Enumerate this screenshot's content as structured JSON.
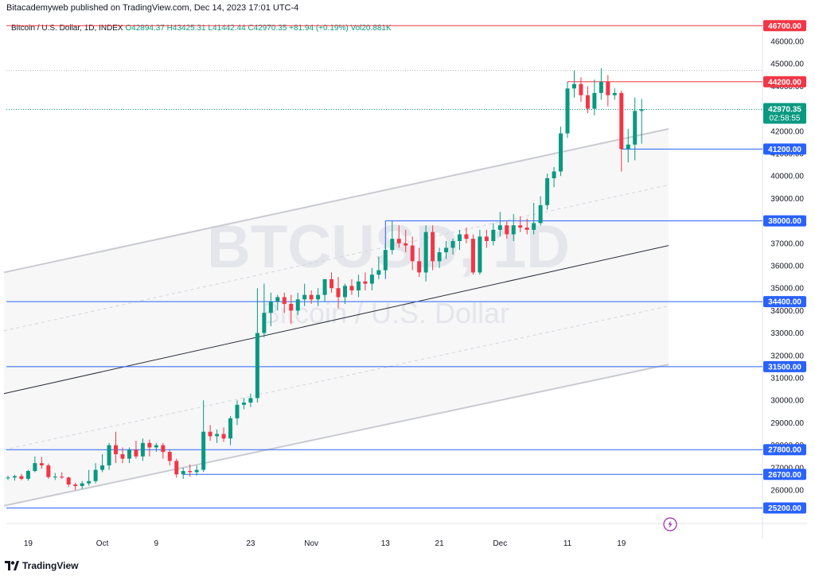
{
  "header": {
    "publisher_line": "Bitacademyweb published on TradingView.com, Dec 14, 2023 17:01 UTC-4"
  },
  "legend": {
    "symbol": "Bitcoin / U.S. Dollar, 1D, INDEX",
    "o": "O42894.37",
    "h": "H43425.31",
    "l": "L41442.44",
    "c": "C42970.35",
    "change": "+81.94 (+0.19%)",
    "vol": "Vol20.881K"
  },
  "watermark": {
    "ticker": "BTCUSD, 1D",
    "name": "Bitcoin / U.S. Dollar"
  },
  "footer": {
    "brand": "TradingView"
  },
  "colors": {
    "up": "#089981",
    "down": "#f23645",
    "blue_level": "#2962ff",
    "red_level": "#f23645",
    "last_price": "#089981"
  },
  "price_badge": {
    "price": "42970.35",
    "countdown": "02:58:55"
  },
  "chart_data": {
    "type": "candlestick",
    "title": "Bitcoin / U.S. Dollar, 1D, INDEX",
    "ylim": [
      25000,
      47000
    ],
    "y_ticks": [
      26000,
      27000,
      28000,
      29000,
      30000,
      31000,
      32000,
      33000,
      34000,
      35000,
      36000,
      37000,
      38000,
      39000,
      40000,
      41000,
      42000,
      43000,
      44000,
      45000,
      46000
    ],
    "x_ticks": [
      {
        "index": 3,
        "label": "19"
      },
      {
        "index": 14,
        "label": "Oct"
      },
      {
        "index": 22,
        "label": "9"
      },
      {
        "index": 36,
        "label": "23"
      },
      {
        "index": 45,
        "label": "Nov"
      },
      {
        "index": 56,
        "label": "13"
      },
      {
        "index": 64,
        "label": "21"
      },
      {
        "index": 73,
        "label": "Dec"
      },
      {
        "index": 83,
        "label": "11"
      },
      {
        "index": 91,
        "label": "19"
      }
    ],
    "x_range": [
      -0.6,
      98
    ],
    "ohlc": [
      [
        26550,
        26640,
        26450,
        26560
      ],
      [
        26560,
        26680,
        26420,
        26620
      ],
      [
        26620,
        26720,
        26440,
        26500
      ],
      [
        26500,
        26900,
        26420,
        26850
      ],
      [
        26850,
        27500,
        26800,
        27200
      ],
      [
        27200,
        27480,
        26950,
        27100
      ],
      [
        27100,
        27180,
        26500,
        26580
      ],
      [
        26580,
        26760,
        26450,
        26600
      ],
      [
        26600,
        26800,
        26500,
        26560
      ],
      [
        26560,
        26600,
        26150,
        26250
      ],
      [
        26250,
        26330,
        26000,
        26180
      ],
      [
        26180,
        26400,
        26050,
        26300
      ],
      [
        26300,
        26900,
        26200,
        26400
      ],
      [
        26400,
        27200,
        26300,
        26900
      ],
      [
        26900,
        27600,
        26800,
        27100
      ],
      [
        27100,
        28100,
        26900,
        28000
      ],
      [
        28000,
        28600,
        27200,
        27600
      ],
      [
        27600,
        27900,
        27200,
        27400
      ],
      [
        27400,
        27900,
        27200,
        27800
      ],
      [
        27800,
        28200,
        27400,
        27500
      ],
      [
        27500,
        28300,
        27300,
        28100
      ],
      [
        28100,
        28250,
        27500,
        27900
      ],
      [
        27900,
        28100,
        27700,
        28000
      ],
      [
        28000,
        28100,
        27400,
        27700
      ],
      [
        27700,
        27800,
        27100,
        27300
      ],
      [
        27300,
        27400,
        26550,
        26700
      ],
      [
        26700,
        27000,
        26500,
        26850
      ],
      [
        26850,
        27150,
        26600,
        26800
      ],
      [
        26800,
        27100,
        26650,
        26900
      ],
      [
        26900,
        30000,
        26800,
        28600
      ],
      [
        28600,
        28900,
        28200,
        28400
      ],
      [
        28400,
        28700,
        28100,
        28500
      ],
      [
        28500,
        28800,
        28150,
        28300
      ],
      [
        28300,
        29300,
        28000,
        29200
      ],
      [
        29200,
        30000,
        28900,
        29800
      ],
      [
        29800,
        30100,
        29600,
        29900
      ],
      [
        29900,
        30300,
        29700,
        30100
      ],
      [
        30100,
        35000,
        29900,
        33000
      ],
      [
        33000,
        35200,
        32800,
        33900
      ],
      [
        33900,
        34800,
        33300,
        34400
      ],
      [
        34400,
        34700,
        34000,
        34600
      ],
      [
        34600,
        34800,
        33900,
        34300
      ],
      [
        34300,
        34700,
        33400,
        34000
      ],
      [
        34000,
        34800,
        33800,
        34500
      ],
      [
        34500,
        35200,
        34200,
        34700
      ],
      [
        34700,
        34900,
        34300,
        34500
      ],
      [
        34500,
        35000,
        34200,
        34700
      ],
      [
        34700,
        35300,
        34400,
        35400
      ],
      [
        35400,
        35700,
        34800,
        35000
      ],
      [
        35000,
        35500,
        34100,
        34600
      ],
      [
        34600,
        35200,
        34300,
        35100
      ],
      [
        35100,
        35400,
        34700,
        34900
      ],
      [
        34900,
        35600,
        34600,
        35300
      ],
      [
        35300,
        35700,
        34900,
        35200
      ],
      [
        35200,
        35900,
        34900,
        35600
      ],
      [
        35600,
        36400,
        35400,
        35800
      ],
      [
        35800,
        37000,
        35600,
        36700
      ],
      [
        36700,
        38000,
        36500,
        37200
      ],
      [
        37200,
        37800,
        36800,
        37000
      ],
      [
        37000,
        37600,
        36600,
        36900
      ],
      [
        36900,
        37300,
        35800,
        36200
      ],
      [
        36200,
        36800,
        35500,
        35700
      ],
      [
        35700,
        37800,
        35300,
        37500
      ],
      [
        37500,
        37800,
        35800,
        36200
      ],
      [
        36200,
        36800,
        35900,
        36600
      ],
      [
        36600,
        37100,
        36300,
        36800
      ],
      [
        36800,
        37200,
        36500,
        37100
      ],
      [
        37100,
        37600,
        36700,
        37400
      ],
      [
        37400,
        37700,
        37000,
        37200
      ],
      [
        37200,
        37400,
        35600,
        35700
      ],
      [
        35700,
        37600,
        35600,
        37300
      ],
      [
        37300,
        37600,
        36800,
        37100
      ],
      [
        37100,
        37900,
        36900,
        37600
      ],
      [
        37600,
        38400,
        37300,
        37800
      ],
      [
        37800,
        38000,
        37200,
        37400
      ],
      [
        37400,
        38300,
        37100,
        37800
      ],
      [
        37800,
        38200,
        37500,
        37700
      ],
      [
        37700,
        38100,
        37400,
        37600
      ],
      [
        37600,
        38800,
        37400,
        37900
      ],
      [
        37900,
        39100,
        37800,
        38700
      ],
      [
        38700,
        40100,
        38500,
        39900
      ],
      [
        39900,
        40400,
        39500,
        40200
      ],
      [
        40200,
        42200,
        40000,
        41900
      ],
      [
        41900,
        44200,
        41700,
        43900
      ],
      [
        43900,
        44700,
        43500,
        44100
      ],
      [
        44100,
        44400,
        43300,
        43600
      ],
      [
        43600,
        44000,
        42800,
        43000
      ],
      [
        43000,
        44300,
        42700,
        43700
      ],
      [
        43700,
        44800,
        43400,
        44200
      ],
      [
        44200,
        44500,
        43100,
        43600
      ],
      [
        43600,
        43900,
        43400,
        43700
      ],
      [
        43700,
        43800,
        40200,
        41200
      ],
      [
        41200,
        42100,
        40600,
        41400
      ],
      [
        41400,
        43500,
        40700,
        42900
      ],
      [
        42900,
        43430,
        41440,
        42970
      ]
    ],
    "candle_x_offset": 0,
    "horizontal_levels": [
      {
        "price": 46700,
        "label": "46700.00",
        "color": "#f23645"
      },
      {
        "price": 44200,
        "label": "44200.00",
        "color": "#f23645"
      },
      {
        "price": 41200,
        "label": "41200.00",
        "color": "#2962ff"
      },
      {
        "price": 38000,
        "label": "38000.00",
        "color": "#2962ff"
      },
      {
        "price": 34400,
        "label": "34400.00",
        "color": "#2962ff"
      },
      {
        "price": 31500,
        "label": "31500.00",
        "color": "#2962ff"
      },
      {
        "price": 27800,
        "label": "27800.00",
        "color": "#2962ff"
      },
      {
        "price": 26700,
        "label": "26700.00",
        "color": "#2962ff"
      },
      {
        "price": 25200,
        "label": "25200.00",
        "color": "#2962ff"
      }
    ],
    "channel": {
      "upper": [
        [
          -0.6,
          35700
        ],
        [
          98,
          42100
        ]
      ],
      "middle": [
        [
          -0.6,
          30300
        ],
        [
          98,
          36900
        ]
      ],
      "lower": [
        [
          -0.6,
          25300
        ],
        [
          98,
          31600
        ]
      ],
      "quarter_upper": [
        [
          -0.6,
          33100
        ],
        [
          98,
          39600
        ]
      ],
      "quarter_lower": [
        [
          -0.6,
          27800
        ],
        [
          98,
          34200
        ]
      ]
    }
  }
}
